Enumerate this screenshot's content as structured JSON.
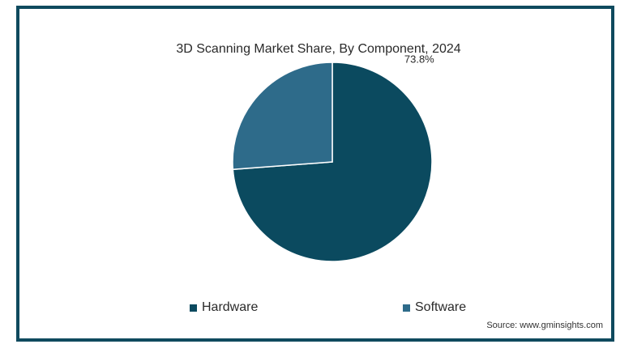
{
  "chart_data": {
    "type": "pie",
    "title": "3D Scanning Market Share, By Component, 2024",
    "slices": [
      {
        "name": "Hardware",
        "value": 73.8,
        "color": "#0b4a5f",
        "label": "73.8%"
      },
      {
        "name": "Software",
        "value": 26.2,
        "color": "#2e6b8a",
        "label": ""
      }
    ],
    "legend_position": "bottom"
  },
  "source": "Source: www.gminsights.com",
  "colors": {
    "border": "#0f4a5e",
    "hardware": "#0b4a5f",
    "software": "#2e6b8a"
  }
}
